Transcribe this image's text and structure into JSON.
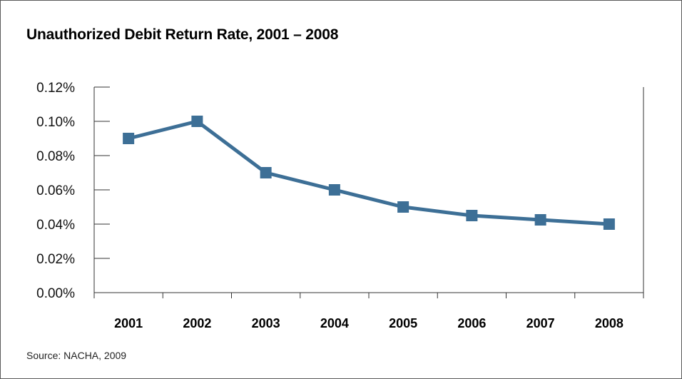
{
  "chart_data": {
    "type": "line",
    "title": "Unauthorized Debit Return Rate, 2001 – 2008",
    "categories": [
      "2001",
      "2002",
      "2003",
      "2004",
      "2005",
      "2006",
      "2007",
      "2008"
    ],
    "series": [
      {
        "values": [
          0.09,
          0.1,
          0.07,
          0.06,
          0.05,
          0.045,
          0.0425,
          0.04
        ]
      }
    ],
    "ylim": [
      0,
      0.12
    ],
    "yticks": [
      "0.00%",
      "0.02%",
      "0.04%",
      "0.06%",
      "0.08%",
      "0.10%",
      "0.12%"
    ],
    "xlabel": "",
    "ylabel": "",
    "grid": false,
    "line_color": "#3d6f96",
    "source": "Source: NACHA, 2009"
  }
}
